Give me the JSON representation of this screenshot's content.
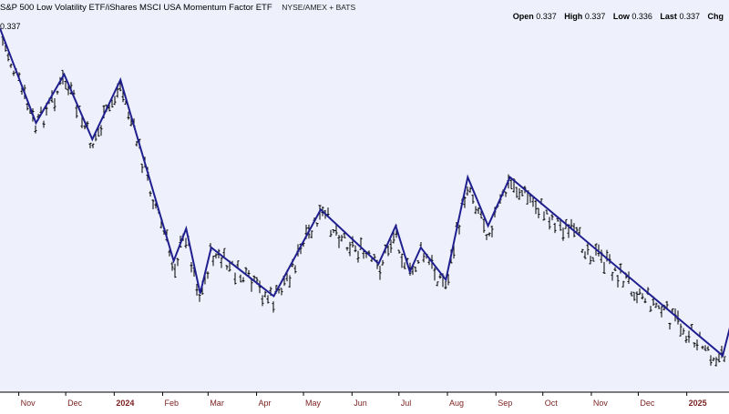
{
  "header": {
    "title": "S&P 500 Low Volatility ETF/iShares MSCI USA Momentum Factor ETF",
    "exchange": "NYSE/AMEX + BATS",
    "open_label": "Open",
    "open_value": "0.337",
    "high_label": "High",
    "high_value": "0.337",
    "low_label": "Low",
    "low_value": "0.336",
    "last_label": "Last",
    "last_value": "0.337",
    "change_label": "Chg"
  },
  "price_label": "0.337",
  "colors": {
    "background": "#ffffff",
    "plot_background": "#eef0fc",
    "zigzag": "#1f1f8f",
    "bars": "#000000",
    "axis_text": "#7a1f1f",
    "axis_line": "#000000"
  },
  "chart_data": {
    "type": "ohlc",
    "title": "S&P 500 Low Volatility ETF/iShares MSCI USA Momentum Factor ETF",
    "x_tick_labels": [
      "Nov",
      "Dec",
      "2024",
      "Feb",
      "Mar",
      "Apr",
      "May",
      "Jun",
      "Jul",
      "Aug",
      "Sep",
      "Oct",
      "Nov",
      "Dec",
      "2025"
    ],
    "x_tick_dates": [
      "2023-11-01",
      "2023-12-01",
      "2024-01-01",
      "2024-02-01",
      "2024-03-01",
      "2024-04-01",
      "2024-05-01",
      "2024-06-01",
      "2024-07-01",
      "2024-08-01",
      "2024-09-01",
      "2024-10-01",
      "2024-11-01",
      "2024-12-01",
      "2025-01-01"
    ],
    "x_range": [
      "2023-10-20",
      "2025-01-28"
    ],
    "y_range": [
      0.3365,
      0.4815
    ],
    "grid": false,
    "zigzag": [
      {
        "date": "2023-10-20",
        "value": 0.471
      },
      {
        "date": "2023-11-12",
        "value": 0.436
      },
      {
        "date": "2023-11-30",
        "value": 0.454
      },
      {
        "date": "2023-12-18",
        "value": 0.43
      },
      {
        "date": "2024-01-05",
        "value": 0.452
      },
      {
        "date": "2024-02-08",
        "value": 0.385
      },
      {
        "date": "2024-02-16",
        "value": 0.397
      },
      {
        "date": "2024-02-25",
        "value": 0.373
      },
      {
        "date": "2024-03-03",
        "value": 0.39
      },
      {
        "date": "2024-04-12",
        "value": 0.372
      },
      {
        "date": "2024-05-12",
        "value": 0.404
      },
      {
        "date": "2024-06-18",
        "value": 0.384
      },
      {
        "date": "2024-06-29",
        "value": 0.398
      },
      {
        "date": "2024-07-08",
        "value": 0.381
      },
      {
        "date": "2024-07-15",
        "value": 0.39
      },
      {
        "date": "2024-07-31",
        "value": 0.378
      },
      {
        "date": "2024-08-14",
        "value": 0.416
      },
      {
        "date": "2024-08-27",
        "value": 0.398
      },
      {
        "date": "2024-09-10",
        "value": 0.416
      },
      {
        "date": "2025-01-24",
        "value": 0.35
      },
      {
        "date": "2025-01-31",
        "value": 0.366
      }
    ]
  }
}
